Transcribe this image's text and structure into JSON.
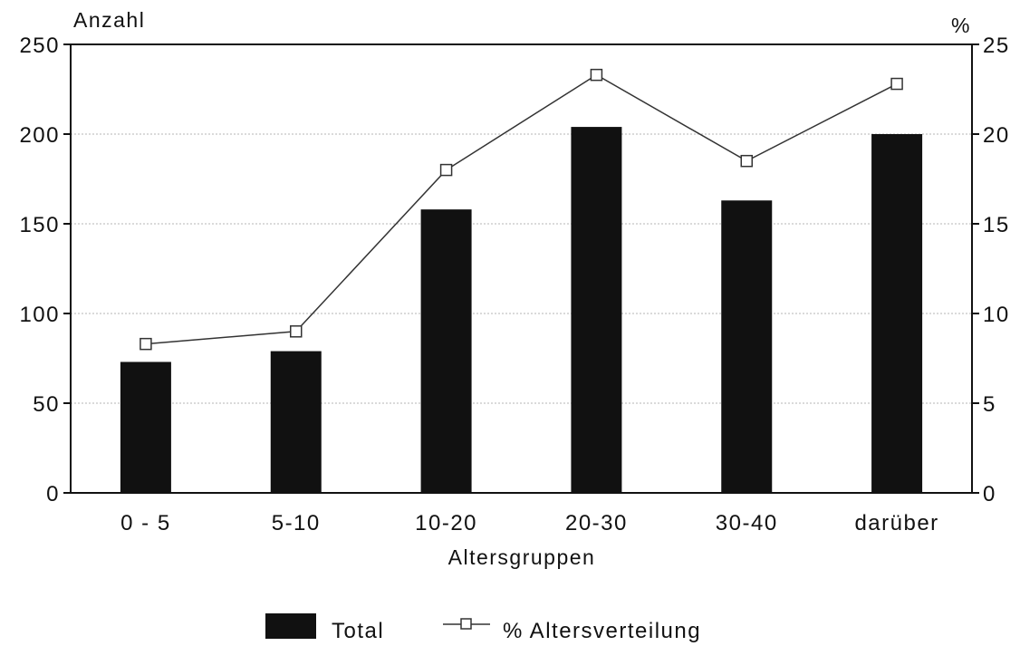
{
  "chart_data": {
    "type": "bar",
    "title": "",
    "xlabel": "Altersgruppen",
    "ylabel_left": "Anzahl",
    "ylabel_right": "%",
    "categories": [
      "0 - 5",
      "5-10",
      "10-20",
      "20-30",
      "30-40",
      "darüber"
    ],
    "series": [
      {
        "name": "Total",
        "type": "bar",
        "axis": "left",
        "values": [
          73,
          79,
          158,
          204,
          163,
          200
        ]
      },
      {
        "name": "% Altersverteilung",
        "type": "line",
        "axis": "right",
        "marker": "square",
        "values": [
          8.3,
          9.0,
          18.0,
          23.3,
          18.5,
          22.8
        ]
      }
    ],
    "ylim_left": [
      0,
      250
    ],
    "yticks_left": [
      "0",
      "50",
      "100",
      "150",
      "200",
      "250"
    ],
    "ylim_right": [
      0,
      25
    ],
    "yticks_right": [
      "0",
      "5",
      "10",
      "15",
      "20",
      "25"
    ],
    "grid": true,
    "legend_position": "bottom",
    "colors": {
      "bar": "#111111",
      "line": "#333333",
      "grid": "#b5b5b5",
      "axis": "#111111"
    }
  }
}
